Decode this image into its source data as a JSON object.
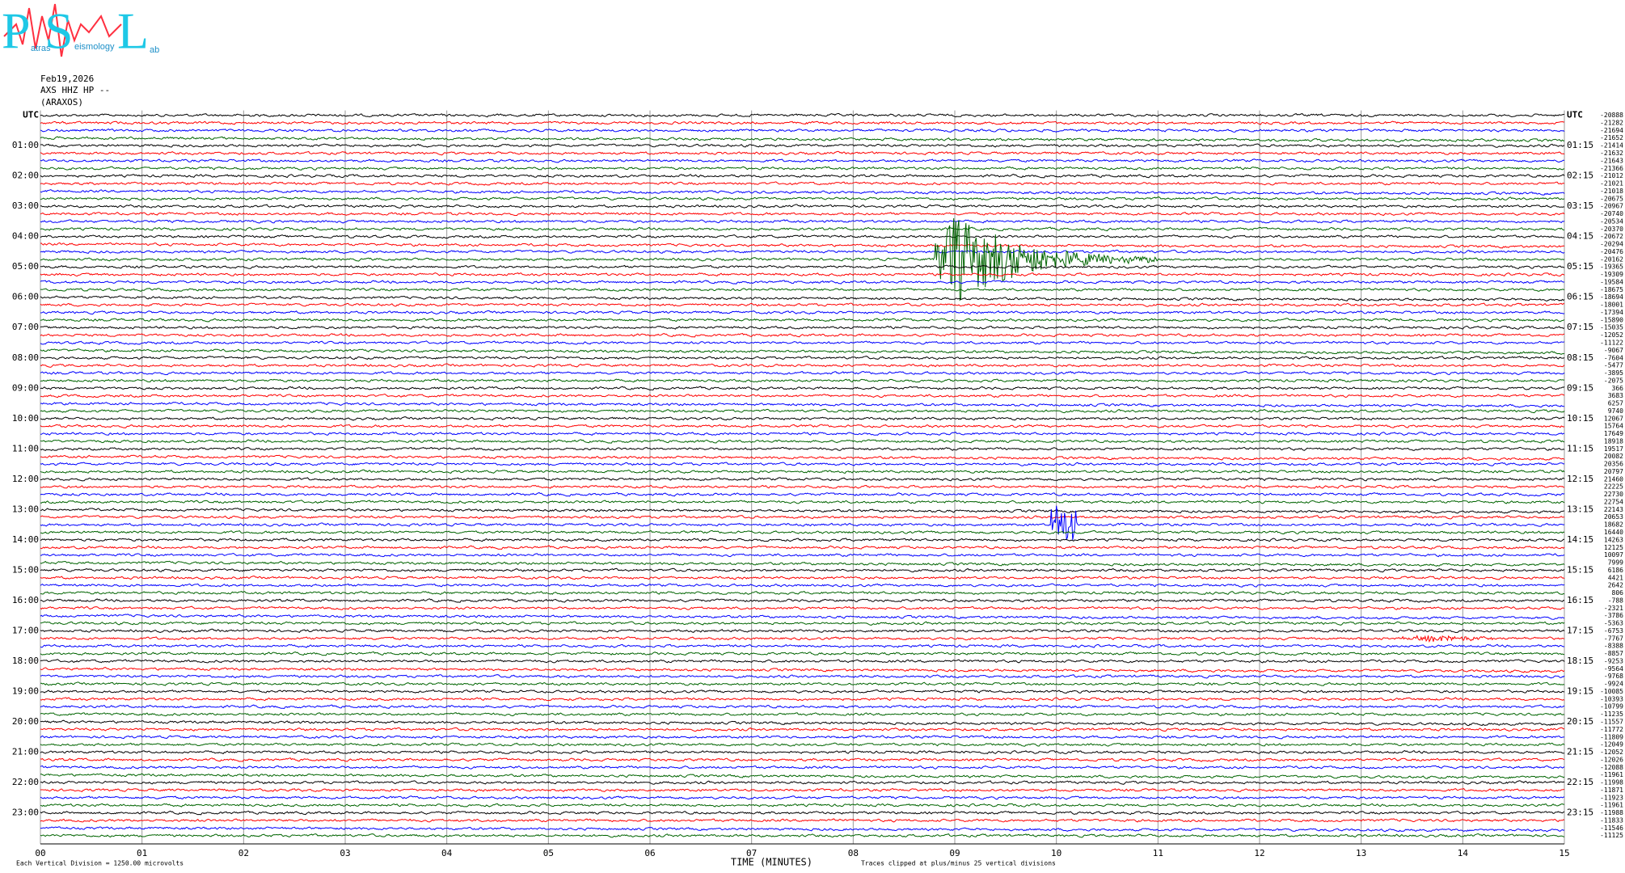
{
  "logo": {
    "letters": [
      "P",
      "S",
      "L"
    ],
    "small": [
      "atras",
      "eismology",
      "ab"
    ]
  },
  "header": {
    "date": "Feb19,2026",
    "channel": "AXS HHZ HP --",
    "station": "(ARAXOS)"
  },
  "chart_data": {
    "type": "helicorder",
    "left_labels": [
      "UTC",
      "01:00",
      "02:00",
      "03:00",
      "04:00",
      "05:00",
      "06:00",
      "07:00",
      "08:00",
      "09:00",
      "10:00",
      "11:00",
      "12:00",
      "13:00",
      "14:00",
      "15:00",
      "16:00",
      "17:00",
      "18:00",
      "19:00",
      "20:00",
      "21:00",
      "22:00",
      "23:00"
    ],
    "right_labels": [
      "UTC",
      "01:15",
      "02:15",
      "03:15",
      "04:15",
      "05:15",
      "06:15",
      "07:15",
      "08:15",
      "09:15",
      "10:15",
      "11:15",
      "12:15",
      "13:15",
      "14:15",
      "15:15",
      "16:15",
      "17:15",
      "18:15",
      "19:15",
      "20:15",
      "21:15",
      "22:15",
      "23:15"
    ],
    "trace_offsets": [
      -20888,
      -21282,
      -21694,
      -21652,
      -21414,
      -21632,
      -21643,
      -21366,
      -21012,
      -21021,
      -21018,
      -20675,
      -20967,
      -20740,
      -20534,
      -20370,
      -20672,
      -20294,
      -20476,
      -20162,
      -19365,
      -19309,
      -19584,
      -18675,
      -18694,
      -18001,
      -17394,
      -15890,
      -15035,
      -12052,
      -11122,
      -9067,
      -7604,
      -5477,
      -3895,
      -2075,
      366,
      3683,
      6257,
      9740,
      12067,
      15764,
      17649,
      18918,
      19517,
      20082,
      20356,
      20797,
      21460,
      22225,
      22730,
      22754,
      22143,
      20653,
      18682,
      16440,
      14263,
      12125,
      10097,
      7999,
      6186,
      4421,
      2642,
      806,
      -788,
      -2321,
      -3786,
      -5363,
      -6753,
      -7767,
      -8388,
      -8857,
      -9253,
      -9564,
      -9768,
      -9924,
      -10085,
      -10393,
      -10799,
      -11235,
      -11557,
      -11772,
      -11809,
      -12049,
      -12052,
      -12026,
      -12088,
      -11961,
      -11998,
      -11871,
      -11923,
      -11961,
      -11988,
      -11833,
      -11546,
      -11125
    ],
    "trace_colors": [
      "#000000",
      "#ff0000",
      "#0000ff",
      "#006400"
    ],
    "xlim": [
      0,
      15
    ],
    "xticks": [
      {
        "value": 0,
        "label": "00"
      },
      {
        "value": 1,
        "label": "01"
      },
      {
        "value": 2,
        "label": "02"
      },
      {
        "value": 3,
        "label": "03"
      },
      {
        "value": 4,
        "label": "04"
      },
      {
        "value": 5,
        "label": "05"
      },
      {
        "value": 6,
        "label": "06"
      },
      {
        "value": 7,
        "label": "07"
      },
      {
        "value": 8,
        "label": "08"
      },
      {
        "value": 9,
        "label": "09"
      },
      10,
      11,
      12,
      13,
      14,
      15
    ],
    "xlabel": "TIME (MINUTES)",
    "clip_note": "Traces clipped at plus/minus 25 vertical divisions",
    "scale_note": "Each Vertical Division = 1250.00 microvolts",
    "grid": true
  }
}
